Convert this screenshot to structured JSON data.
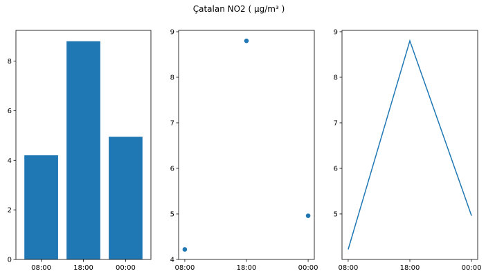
{
  "figure": {
    "title": "Çatalan NO2 ( µg/m³ )"
  },
  "colors": {
    "series": "#1f77b4",
    "axis": "#000000",
    "background": "#ffffff"
  },
  "chart_data": [
    {
      "type": "bar",
      "categories": [
        "08:00",
        "18:00",
        "00:00"
      ],
      "values": [
        4.2,
        8.8,
        4.95
      ],
      "ylim": [
        0,
        9.24
      ],
      "yticks": [
        0,
        2,
        4,
        6,
        8
      ],
      "grid": false
    },
    {
      "type": "scatter",
      "categories": [
        "08:00",
        "18:00",
        "00:00"
      ],
      "values": [
        4.22,
        8.8,
        4.96
      ],
      "ylim": [
        4.0,
        9.03
      ],
      "yticks": [
        4,
        5,
        6,
        7,
        8,
        9
      ],
      "grid": false
    },
    {
      "type": "line",
      "categories": [
        "08:00",
        "18:00",
        "00:00"
      ],
      "values": [
        4.22,
        8.8,
        4.96
      ],
      "ylim": [
        4.0,
        9.03
      ],
      "yticks": [
        5,
        6,
        7,
        8,
        9
      ],
      "grid": false
    }
  ]
}
